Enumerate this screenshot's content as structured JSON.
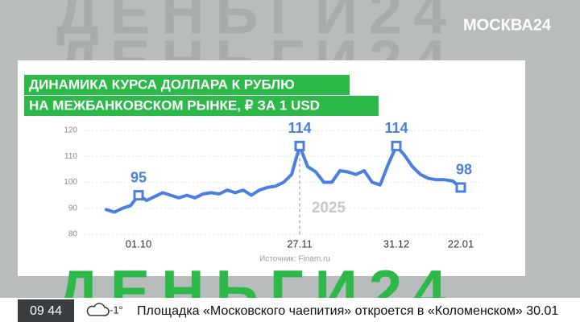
{
  "screen": {
    "channel_logo": "МОСКВА24",
    "watermark": "ДЕНЬГИ24",
    "ticker": {
      "time": "09 44",
      "temperature": "-1°",
      "headline": "Площадка «Московского чаепития» откроется в «Коломенском» 30.01"
    }
  },
  "chart_data": {
    "type": "line",
    "title": [
      "ДИНАМИКА КУРСА ДОЛЛАРА К РУБЛЮ",
      "НА МЕЖБАНКОВСКОМ РЫНКЕ, ₽ ЗА 1 USD"
    ],
    "source": "Источник: Finam.ru",
    "annotation": "2025",
    "categories": [
      null,
      null,
      null,
      null,
      "01.10",
      null,
      null,
      null,
      null,
      null,
      null,
      null,
      null,
      null,
      null,
      null,
      null,
      null,
      null,
      null,
      null,
      null,
      null,
      null,
      "27.11",
      null,
      null,
      null,
      null,
      null,
      null,
      null,
      null,
      null,
      null,
      null,
      "31.12",
      null,
      null,
      null,
      null,
      null,
      null,
      null,
      "22.01"
    ],
    "values": [
      89.5,
      88.5,
      90,
      91,
      95,
      93,
      94.5,
      96,
      95,
      94,
      95,
      94,
      95.5,
      96,
      95.5,
      97,
      96,
      97,
      95,
      97,
      98,
      98.5,
      100,
      103,
      114,
      106,
      104,
      100,
      100,
      104.5,
      104,
      103,
      104.5,
      100,
      99,
      107,
      114,
      110.5,
      106,
      103,
      101.5,
      101,
      101,
      100.5,
      98
    ],
    "value_labels": [
      null,
      null,
      null,
      null,
      "95",
      null,
      null,
      null,
      null,
      null,
      null,
      null,
      null,
      null,
      null,
      null,
      null,
      null,
      null,
      null,
      null,
      null,
      null,
      null,
      "114",
      null,
      null,
      null,
      null,
      null,
      null,
      null,
      null,
      null,
      null,
      null,
      "114",
      null,
      null,
      null,
      null,
      null,
      null,
      null,
      "98"
    ],
    "color": "#4a7fe0",
    "ylim": [
      80,
      120
    ],
    "yticks": [
      80,
      90,
      100,
      110,
      120
    ],
    "grid": true
  }
}
